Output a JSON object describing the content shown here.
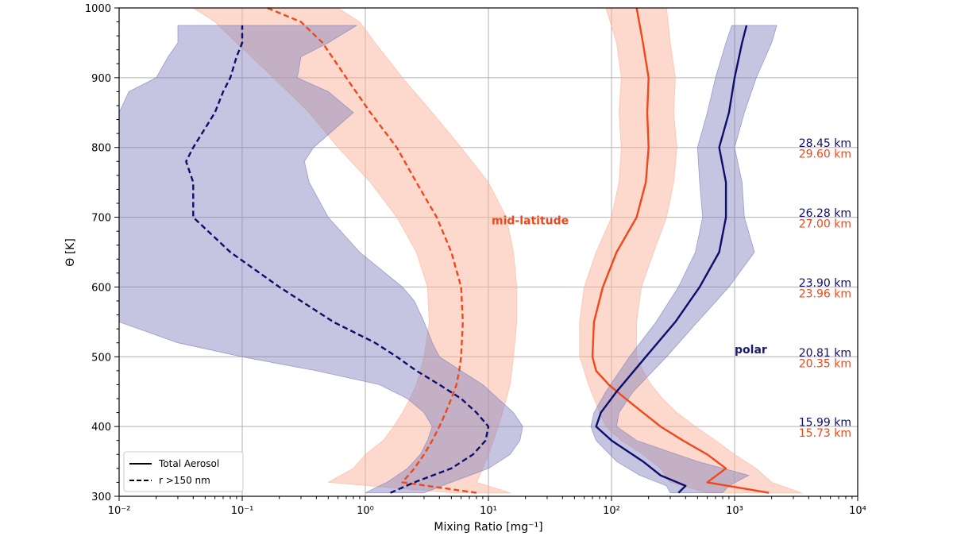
{
  "chart_data": {
    "type": "line",
    "xlabel": "Mixing Ratio [mg⁻¹]",
    "ylabel": "Θ [K]",
    "xscale": "log",
    "xlim": [
      0.01,
      10000
    ],
    "ylim": [
      300,
      1000
    ],
    "grid": true,
    "legend_placement": "lower-left",
    "x_tick_labels": [
      "10⁻²",
      "10⁻¹",
      "10⁰",
      "10¹",
      "10²",
      "10³",
      "10⁴"
    ],
    "y_tick_labels": [
      "300",
      "400",
      "500",
      "600",
      "700",
      "800",
      "900",
      "1000"
    ],
    "legend": [
      {
        "label": "Total Aerosol",
        "style": "solid"
      },
      {
        "label": "r >150 nm",
        "style": "dashed"
      }
    ],
    "annotations": [
      {
        "text": "mid-latitude",
        "color": "#f0471b",
        "x": 10,
        "y": 690
      },
      {
        "text": "polar",
        "color": "#1a1a6e",
        "x": 1000,
        "y": 505
      }
    ],
    "altitude_labels": [
      {
        "y": 800,
        "polar": "28.45 km",
        "midlat": "29.60 km"
      },
      {
        "y": 700,
        "polar": "26.28 km",
        "midlat": "27.00 km"
      },
      {
        "y": 600,
        "polar": "23.90 km",
        "midlat": "23.96 km"
      },
      {
        "y": 500,
        "polar": "20.81 km",
        "midlat": "20.35 km"
      },
      {
        "y": 400,
        "polar": "15.99 km",
        "midlat": "15.73 km"
      }
    ],
    "colors": {
      "polar": "#0d0d6b",
      "midlat": "#f0471b",
      "polar_fill": "#7f7fbd",
      "midlat_fill": "#fbb49c"
    },
    "series": [
      {
        "region": "mid-latitude",
        "kind": "total",
        "style": "solid",
        "y": [
          305,
          320,
          340,
          360,
          380,
          400,
          420,
          440,
          460,
          480,
          500,
          550,
          600,
          650,
          700,
          750,
          800,
          850,
          900,
          950,
          1000
        ],
        "median": [
          1900,
          600,
          850,
          600,
          380,
          250,
          180,
          130,
          95,
          75,
          70,
          72,
          85,
          110,
          160,
          190,
          200,
          195,
          200,
          180,
          160
        ],
        "low": [
          600,
          300,
          250,
          180,
          120,
          90,
          80,
          72,
          65,
          60,
          55,
          55,
          60,
          75,
          100,
          115,
          120,
          115,
          120,
          110,
          90
        ],
        "high": [
          3500,
          2000,
          1500,
          1000,
          700,
          480,
          340,
          260,
          210,
          180,
          160,
          160,
          175,
          220,
          280,
          320,
          340,
          320,
          330,
          300,
          280
        ]
      },
      {
        "region": "mid-latitude",
        "kind": "large",
        "style": "dashed",
        "y": [
          305,
          320,
          340,
          360,
          380,
          400,
          420,
          440,
          460,
          480,
          500,
          550,
          600,
          650,
          700,
          750,
          800,
          850,
          900,
          950,
          980,
          1000
        ],
        "median": [
          8,
          2,
          2.5,
          3,
          3.5,
          4,
          4.5,
          5,
          5.5,
          5.8,
          6,
          6.2,
          6,
          5,
          3.8,
          2.6,
          1.8,
          1.1,
          0.7,
          0.45,
          0.3,
          0.16
        ],
        "low": [
          5,
          0.5,
          0.8,
          1,
          1.4,
          1.7,
          2,
          2.3,
          2.6,
          2.8,
          3,
          3.3,
          3.2,
          2.6,
          1.8,
          1.1,
          0.6,
          0.35,
          0.18,
          0.09,
          0.06,
          0.04
        ],
        "high": [
          15,
          8,
          9,
          10,
          11,
          12,
          13,
          14,
          15,
          15.5,
          16,
          17,
          17,
          16,
          14,
          10,
          6,
          3.5,
          2,
          1.2,
          0.9,
          0.6
        ]
      },
      {
        "region": "polar",
        "kind": "total",
        "style": "solid",
        "y": [
          305,
          315,
          330,
          350,
          380,
          400,
          420,
          450,
          500,
          550,
          600,
          650,
          700,
          750,
          800,
          850,
          900,
          950,
          975
        ],
        "median": [
          350,
          400,
          250,
          180,
          100,
          75,
          82,
          110,
          190,
          330,
          520,
          750,
          850,
          850,
          750,
          900,
          1000,
          1150,
          1250
        ],
        "low": [
          300,
          280,
          170,
          110,
          75,
          68,
          72,
          90,
          140,
          230,
          350,
          480,
          550,
          520,
          500,
          600,
          700,
          850,
          950
        ],
        "high": [
          800,
          900,
          1300,
          500,
          160,
          110,
          115,
          150,
          280,
          500,
          900,
          1450,
          1200,
          1150,
          1000,
          1200,
          1500,
          2000,
          2200
        ]
      },
      {
        "region": "polar",
        "kind": "large",
        "style": "dashed",
        "y": [
          305,
          320,
          340,
          360,
          380,
          400,
          420,
          440,
          460,
          480,
          500,
          520,
          550,
          580,
          600,
          650,
          700,
          750,
          780,
          800,
          850,
          880,
          900,
          930,
          950,
          975
        ],
        "median": [
          1.6,
          2.5,
          5,
          7.5,
          9.5,
          10,
          8,
          6,
          4,
          2.6,
          1.8,
          1.2,
          0.55,
          0.3,
          0.2,
          0.08,
          0.04,
          0.04,
          0.035,
          0.04,
          0.06,
          0.07,
          0.08,
          0.09,
          0.1,
          0.1
        ],
        "low": [
          1,
          1.5,
          2.2,
          2.8,
          3.2,
          3.5,
          3,
          2.2,
          1.3,
          0.4,
          0.1,
          0.03,
          0.01,
          0.01,
          0.01,
          0.01,
          0.01,
          0.01,
          0.01,
          0.01,
          0.01,
          0.012,
          0.02,
          0.025,
          0.03,
          0.03
        ],
        "high": [
          3,
          5,
          10,
          15,
          18,
          19,
          16,
          12,
          9,
          6,
          4,
          3.5,
          3,
          2.5,
          2,
          0.9,
          0.5,
          0.35,
          0.32,
          0.38,
          0.8,
          0.5,
          0.28,
          0.3,
          0.5,
          0.85
        ]
      }
    ]
  }
}
